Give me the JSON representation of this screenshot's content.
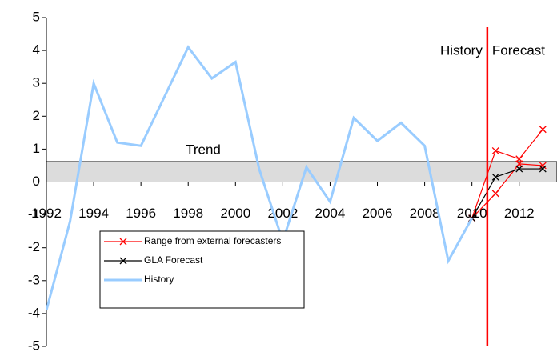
{
  "chart_data": {
    "type": "line",
    "xlim": [
      1992,
      2013.6
    ],
    "ylim": [
      -5,
      5
    ],
    "xticks": [
      1992,
      1994,
      1996,
      1998,
      2000,
      2002,
      2004,
      2006,
      2008,
      2010,
      2012
    ],
    "yticks": [
      -5,
      -4,
      -3,
      -2,
      -1,
      0,
      1,
      2,
      3,
      4,
      5
    ],
    "trend_label": "Trend",
    "trend_band": [
      0,
      0.62
    ],
    "divider_x": 2010.65,
    "left_label": "History",
    "right_label": "Forecast",
    "legend": "lower-left",
    "series": [
      {
        "name": "Range from external forecasters",
        "color": "#ff0000",
        "marker": "x",
        "x": [
          2010,
          2011,
          2012,
          2013
        ],
        "values": [
          -1.1,
          0.95,
          0.7,
          1.6
        ],
        "low": [
          -1.1,
          -0.35,
          0.55,
          0.5
        ]
      },
      {
        "name": "GLA Forecast",
        "color": "#000000",
        "marker": "x",
        "x": [
          2010,
          2011,
          2012,
          2013
        ],
        "values": [
          -1.1,
          0.15,
          0.4,
          0.4
        ]
      },
      {
        "name": "History",
        "color": "#99ccff",
        "x": [
          1992,
          1993,
          1994,
          1995,
          1996,
          1997,
          1998,
          1999,
          2000,
          2001,
          2002,
          2003,
          2004,
          2005,
          2006,
          2007,
          2008,
          2009,
          2010
        ],
        "values": [
          -3.9,
          -1.2,
          3.0,
          1.2,
          1.1,
          2.6,
          4.1,
          3.15,
          3.65,
          0.4,
          -1.8,
          0.45,
          -0.6,
          1.95,
          1.25,
          1.8,
          1.1,
          -2.4,
          -1.1
        ]
      }
    ]
  }
}
